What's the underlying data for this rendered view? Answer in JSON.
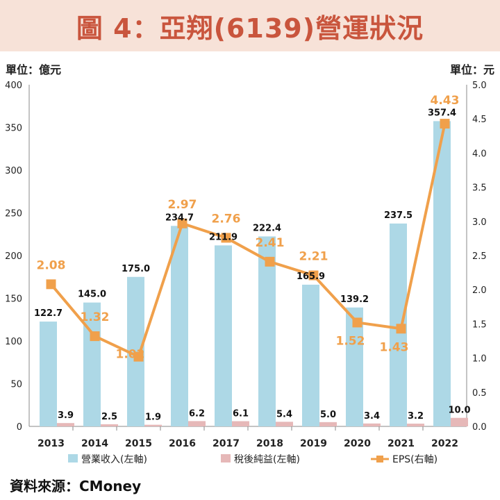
{
  "title": "圖 4：亞翔(6139)營運狀況",
  "unit_left": "單位：億元",
  "unit_right": "單位：元",
  "source": "資料來源：CMoney",
  "colors": {
    "revenue": "#add8e6",
    "net_income": "#e6b8b8",
    "eps": "#f0a04b",
    "eps_label": "#f0a04b",
    "title": "#c9553d",
    "title_band": "#f7e2d8"
  },
  "chart_data": {
    "type": "bar",
    "categories": [
      "2013",
      "2014",
      "2015",
      "2016",
      "2017",
      "2018",
      "2019",
      "2020",
      "2021",
      "2022"
    ],
    "series": [
      {
        "name": "營業收入(左軸)",
        "type": "bar",
        "axis": "left",
        "values": [
          122.7,
          145.0,
          175.0,
          234.7,
          211.9,
          222.4,
          165.9,
          139.2,
          237.5,
          357.4
        ],
        "labels": [
          "122.7",
          "145.0",
          "175.0",
          "234.7",
          "211.9",
          "222.4",
          "165.9",
          "139.2",
          "237.5",
          "357.4"
        ]
      },
      {
        "name": "稅後純益(左軸)",
        "type": "bar",
        "axis": "left",
        "values": [
          3.9,
          2.5,
          1.9,
          6.2,
          6.1,
          5.4,
          5.0,
          3.4,
          3.2,
          10.0
        ],
        "labels": [
          "3.9",
          "2.5",
          "1.9",
          "6.2",
          "6.1",
          "5.4",
          "5.0",
          "3.4",
          "3.2",
          "10.0"
        ]
      },
      {
        "name": "EPS(右軸)",
        "type": "line",
        "axis": "right",
        "values": [
          2.08,
          1.32,
          1.02,
          2.97,
          2.76,
          2.41,
          2.21,
          1.52,
          1.43,
          4.43
        ],
        "labels": [
          "2.08",
          "1.32",
          "1.02",
          "2.97",
          "2.76",
          "2.41",
          "2.21",
          "1.52",
          "1.43",
          "4.43"
        ]
      }
    ],
    "left_axis": {
      "range": [
        0,
        400
      ],
      "ticks": [
        "0",
        "50",
        "100",
        "150",
        "200",
        "250",
        "300",
        "350",
        "400"
      ]
    },
    "right_axis": {
      "range": [
        0,
        5
      ],
      "ticks": [
        "0.0",
        "0.5",
        "1.0",
        "1.5",
        "2.0",
        "2.5",
        "3.0",
        "3.5",
        "4.0",
        "4.5",
        "5.0"
      ]
    },
    "legend_position": "bottom",
    "grid": false
  }
}
